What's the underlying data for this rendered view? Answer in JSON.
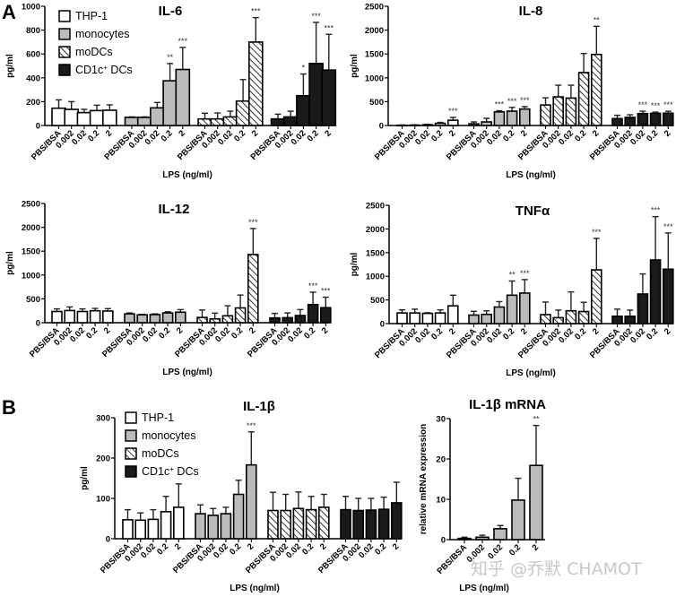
{
  "figure": {
    "panel_letters": [
      "A",
      "B"
    ],
    "watermark": "知乎 @乔默 CHAMOT"
  },
  "colors": {
    "THP-1": "#ffffff",
    "monocytes": "#bbbbbb",
    "moDCs": "hatched",
    "CD1c+ DCs": "#1a1a1a",
    "error_bar": "#222222",
    "significance": "#333333"
  },
  "legend": {
    "entries": [
      {
        "label": "THP-1",
        "style": "white"
      },
      {
        "label": "monocytes",
        "style": "gray"
      },
      {
        "label": "moDCs",
        "style": "hatched"
      },
      {
        "label": "CD1c",
        "sup": "+",
        "suffix": " DCs",
        "style": "black"
      }
    ]
  },
  "chart_data": [
    {
      "id": "il6",
      "type": "bar",
      "title": "IL-6",
      "xlabel": "LPS (ng/ml)",
      "ylabel": "pg/ml",
      "ylim": [
        0,
        1000
      ],
      "yticks": [
        0,
        200,
        400,
        600,
        800,
        1000
      ],
      "grid": false,
      "legend": "top-left",
      "categories": [
        "PBS/BSA",
        "0.002",
        "0.02",
        "0.2",
        "2"
      ],
      "series": [
        {
          "name": "THP-1",
          "values": [
            145,
            135,
            108,
            125,
            128
          ],
          "errors": [
            70,
            65,
            28,
            45,
            45
          ],
          "sig": [
            "",
            "",
            "",
            "",
            ""
          ]
        },
        {
          "name": "monocytes",
          "values": [
            68,
            68,
            148,
            375,
            470
          ],
          "errors": [
            4,
            4,
            45,
            145,
            185
          ],
          "sig": [
            "",
            "",
            "",
            "**",
            "***"
          ]
        },
        {
          "name": "moDCs",
          "values": [
            55,
            55,
            72,
            205,
            700
          ],
          "errors": [
            48,
            50,
            48,
            180,
            205
          ],
          "sig": [
            "",
            "",
            "",
            "",
            "***"
          ]
        },
        {
          "name": "CD1c+ DCs",
          "values": [
            55,
            72,
            250,
            520,
            465
          ],
          "errors": [
            40,
            48,
            182,
            345,
            300
          ],
          "sig": [
            "",
            "",
            "*",
            "***",
            "***"
          ]
        }
      ]
    },
    {
      "id": "il8",
      "type": "bar",
      "title": "IL-8",
      "xlabel": "LPS (ng/ml)",
      "ylabel": "pg/ml",
      "ylim": [
        0,
        2500
      ],
      "yticks": [
        0,
        500,
        1000,
        1500,
        2000,
        2500
      ],
      "grid": false,
      "categories": [
        "PBS/BSA",
        "0.002",
        "0.02",
        "0.2",
        "2"
      ],
      "series": [
        {
          "name": "THP-1",
          "values": [
            5,
            8,
            15,
            45,
            110
          ],
          "errors": [
            5,
            5,
            8,
            20,
            60
          ],
          "sig": [
            "",
            "",
            "",
            "",
            "***"
          ]
        },
        {
          "name": "monocytes",
          "values": [
            35,
            75,
            285,
            300,
            345
          ],
          "errors": [
            40,
            75,
            25,
            80,
            50
          ],
          "sig": [
            "",
            "",
            "***",
            "***",
            "***"
          ]
        },
        {
          "name": "moDCs",
          "values": [
            430,
            600,
            575,
            1110,
            1490
          ],
          "errors": [
            150,
            245,
            270,
            400,
            590
          ],
          "sig": [
            "",
            "",
            "",
            "",
            "**"
          ]
        },
        {
          "name": "CD1c+ DCs",
          "values": [
            145,
            170,
            250,
            255,
            258
          ],
          "errors": [
            70,
            55,
            50,
            25,
            40
          ],
          "sig": [
            "",
            "",
            "***",
            "***",
            "***"
          ]
        }
      ]
    },
    {
      "id": "il12",
      "type": "bar",
      "title": "IL-12",
      "xlabel": "LPS (ng/ml)",
      "ylabel": "pg/ml",
      "ylim": [
        0,
        2500
      ],
      "yticks": [
        0,
        500,
        1000,
        1500,
        2000,
        2500
      ],
      "grid": false,
      "categories": [
        "PBS/BSA",
        "0.002",
        "0.02",
        "0.2",
        "2"
      ],
      "series": [
        {
          "name": "THP-1",
          "values": [
            235,
            255,
            235,
            250,
            245
          ],
          "errors": [
            55,
            75,
            55,
            50,
            50
          ],
          "sig": [
            "",
            "",
            "",
            "",
            ""
          ]
        },
        {
          "name": "monocytes",
          "values": [
            185,
            165,
            170,
            205,
            220
          ],
          "errors": [
            20,
            10,
            15,
            25,
            55
          ],
          "sig": [
            "",
            "",
            "",
            "",
            ""
          ]
        },
        {
          "name": "moDCs",
          "values": [
            110,
            80,
            145,
            310,
            1430
          ],
          "errors": [
            155,
            120,
            210,
            270,
            545
          ],
          "sig": [
            "",
            "",
            "",
            "",
            "***"
          ]
        },
        {
          "name": "CD1c+ DCs",
          "values": [
            100,
            105,
            150,
            380,
            315
          ],
          "errors": [
            95,
            100,
            125,
            260,
            220
          ],
          "sig": [
            "",
            "",
            "",
            "***",
            "***"
          ]
        }
      ]
    },
    {
      "id": "tnfa",
      "type": "bar",
      "title": "TNFα",
      "xlabel": "LPS (ng/ml)",
      "ylabel": "pg/ml",
      "ylim": [
        0,
        2500
      ],
      "yticks": [
        0,
        500,
        1000,
        1500,
        2000,
        2500
      ],
      "grid": false,
      "categories": [
        "PBS/BSA",
        "0.002",
        "0.02",
        "0.2",
        "2"
      ],
      "series": [
        {
          "name": "THP-1",
          "values": [
            225,
            225,
            215,
            225,
            375
          ],
          "errors": [
            65,
            80,
            15,
            65,
            225
          ],
          "sig": [
            "",
            "",
            "",
            "",
            ""
          ]
        },
        {
          "name": "monocytes",
          "values": [
            180,
            195,
            350,
            600,
            645
          ],
          "errors": [
            80,
            75,
            115,
            300,
            285
          ],
          "sig": [
            "",
            "",
            "",
            "**",
            "***"
          ]
        },
        {
          "name": "moDCs",
          "values": [
            190,
            125,
            270,
            255,
            1135
          ],
          "errors": [
            265,
            160,
            400,
            195,
            665
          ],
          "sig": [
            "",
            "",
            "",
            "",
            "***"
          ]
        },
        {
          "name": "CD1c+ DCs",
          "values": [
            155,
            155,
            625,
            1345,
            1150
          ],
          "errors": [
            150,
            130,
            425,
            915,
            765
          ],
          "sig": [
            "",
            "",
            "",
            "***",
            "***"
          ]
        }
      ]
    },
    {
      "id": "il1b",
      "type": "bar",
      "title": "IL-1β",
      "xlabel": "LPS (ng/ml)",
      "ylabel": "pg/ml",
      "ylim": [
        0,
        300
      ],
      "yticks": [
        0,
        100,
        200,
        300
      ],
      "grid": false,
      "legend": "top-left",
      "categories": [
        "PBS/BSA",
        "0.002",
        "0.02",
        "0.2",
        "2"
      ],
      "series": [
        {
          "name": "THP-1",
          "values": [
            47,
            46,
            48,
            67,
            78
          ],
          "errors": [
            25,
            18,
            24,
            38,
            58
          ],
          "sig": [
            "",
            "",
            "",
            "",
            ""
          ]
        },
        {
          "name": "monocytes",
          "values": [
            62,
            58,
            62,
            110,
            183
          ],
          "errors": [
            22,
            17,
            16,
            35,
            82
          ],
          "sig": [
            "",
            "",
            "",
            "",
            "***"
          ]
        },
        {
          "name": "moDCs",
          "values": [
            70,
            70,
            75,
            72,
            78
          ],
          "errors": [
            45,
            40,
            41,
            33,
            32
          ],
          "sig": [
            "",
            "",
            "",
            "",
            ""
          ]
        },
        {
          "name": "CD1c+ DCs",
          "values": [
            72,
            70,
            71,
            73,
            89
          ],
          "errors": [
            33,
            30,
            29,
            30,
            51
          ],
          "sig": [
            "",
            "",
            "",
            "",
            ""
          ]
        }
      ]
    },
    {
      "id": "il1b_mrna",
      "type": "bar",
      "title": "IL-1β mRNA",
      "xlabel": "LPS (ng/ml)",
      "ylabel": "relative mRNA expression",
      "ylim": [
        0,
        30
      ],
      "yticks": [
        0,
        10,
        20,
        30
      ],
      "grid": false,
      "categories": [
        "PBS/BSA",
        "0.002",
        "0.02",
        "0.2",
        "2"
      ],
      "series": [
        {
          "name": "monocytes",
          "values": [
            0.3,
            0.6,
            2.7,
            9.8,
            18.4
          ],
          "errors": [
            0.3,
            0.5,
            0.8,
            5.4,
            9.9
          ],
          "sig": [
            "",
            "",
            "",
            "",
            "**"
          ]
        }
      ]
    }
  ]
}
